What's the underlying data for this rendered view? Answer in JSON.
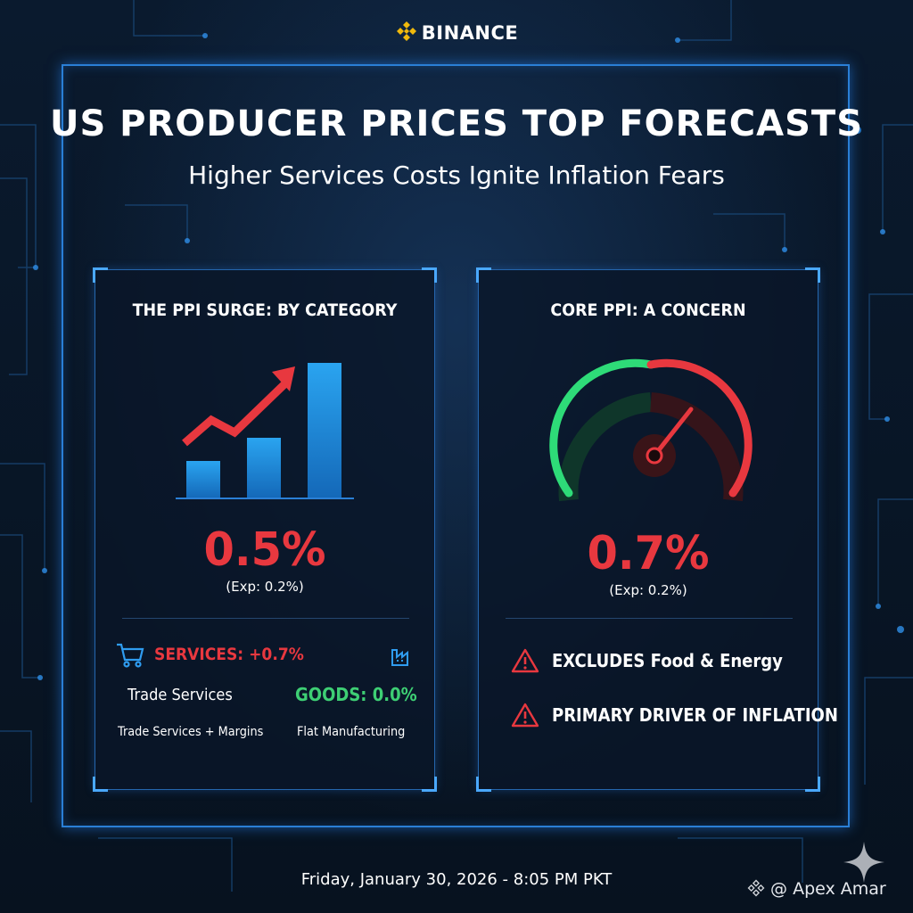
{
  "brand": {
    "name": "BINANCE",
    "logo_icon": "binance-diamond-icon",
    "color": "#f0b90b"
  },
  "header": {
    "title": "US PRODUCER PRICES TOP FORECASTS",
    "subtitle": "Higher Services Costs Ignite Inflation Fears"
  },
  "left_panel": {
    "title": "THE PPI SURGE: BY CATEGORY",
    "icon": "rising-bar-chart-icon",
    "value": "0.5%",
    "expected": "(Exp: 0.2%)",
    "services": {
      "icon": "shopping-cart-icon",
      "label": "SERVICES: +0.7%",
      "sub1": "Trade Services",
      "sub2": "Trade Services + Margins"
    },
    "goods": {
      "icon": "factory-icon",
      "label": "GOODS: 0.0%",
      "sub": "Flat Manufacturing"
    }
  },
  "right_panel": {
    "title": "CORE PPI: A CONCERN",
    "icon": "gauge-icon",
    "value": "0.7%",
    "expected": "(Exp: 0.2%)",
    "items": [
      {
        "icon": "warning-icon",
        "label": "EXCLUDES Food & Energy"
      },
      {
        "icon": "warning-icon",
        "label": "PRIMARY DRIVER OF INFLATION"
      }
    ]
  },
  "footer": {
    "datetime": "Friday, January 30, 2026 - 8:05 PM PKT",
    "credit": "@ Apex Amar"
  },
  "colors": {
    "accent_red": "#e8383f",
    "accent_green": "#3ecf74",
    "frame_blue": "#2a7fd6",
    "bar_blue": "#1e8fe0"
  }
}
